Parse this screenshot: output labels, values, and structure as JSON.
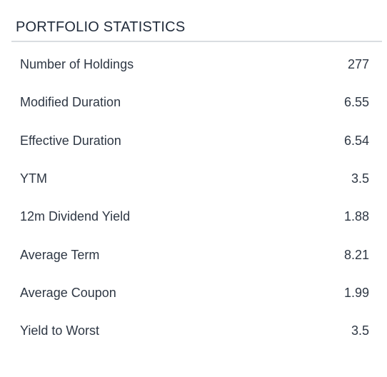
{
  "portfolio_statistics": {
    "title": "PORTFOLIO STATISTICS",
    "rows": [
      {
        "label": "Number of Holdings",
        "value": "277"
      },
      {
        "label": "Modified Duration",
        "value": "6.55"
      },
      {
        "label": "Effective Duration",
        "value": "6.54"
      },
      {
        "label": "YTM",
        "value": "3.5"
      },
      {
        "label": "12m Dividend Yield",
        "value": "1.88"
      },
      {
        "label": "Average Term",
        "value": "8.21"
      },
      {
        "label": "Average Coupon",
        "value": "1.99"
      },
      {
        "label": "Yield to Worst",
        "value": "3.5"
      }
    ]
  },
  "colors": {
    "text": "#2e3744",
    "title": "#1f2a3a",
    "rule": "#d9dde1",
    "background": "#ffffff"
  }
}
